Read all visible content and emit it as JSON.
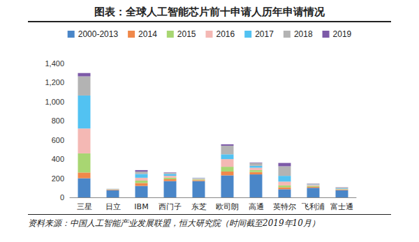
{
  "chart_data": {
    "type": "bar",
    "title": "图表：全球人工智能芯片前十申请人历年申请情况",
    "annotations": [
      "资料来源：中国人工智能产业发展联盟，恒大研究院（时间截至2019年10月）"
    ],
    "categories": [
      "三星",
      "日立",
      "IBM",
      "西门子",
      "东芝",
      "欧司朗",
      "高通",
      "英特尔",
      "飞利浦",
      "富士通"
    ],
    "series": [
      {
        "name": "2000-2013",
        "color": "#4a86c8",
        "values": [
          200,
          75,
          120,
          170,
          170,
          230,
          240,
          85,
          100,
          75
        ]
      },
      {
        "name": "2014",
        "color": "#f0884a",
        "values": [
          60,
          5,
          30,
          20,
          10,
          40,
          25,
          20,
          10,
          5
        ]
      },
      {
        "name": "2015",
        "color": "#a8d672",
        "values": [
          200,
          3,
          25,
          15,
          8,
          50,
          20,
          20,
          10,
          5
        ]
      },
      {
        "name": "2016",
        "color": "#f4b8b4",
        "values": [
          260,
          3,
          30,
          20,
          8,
          80,
          25,
          40,
          10,
          5
        ]
      },
      {
        "name": "2017",
        "color": "#52c2f2",
        "values": [
          345,
          2,
          40,
          20,
          5,
          50,
          20,
          60,
          5,
          5
        ]
      },
      {
        "name": "2018",
        "color": "#b3b3b3",
        "values": [
          200,
          2,
          25,
          10,
          3,
          90,
          30,
          100,
          8,
          8
        ]
      },
      {
        "name": "2019",
        "color": "#7d5aa8",
        "values": [
          35,
          0,
          15,
          5,
          1,
          15,
          5,
          35,
          2,
          2
        ]
      }
    ],
    "ylim": [
      0,
      1400
    ],
    "yticks": [
      0,
      200,
      400,
      600,
      800,
      {
        "value": 1000,
        "label": "1,000"
      },
      {
        "value": 1200,
        "label": "1,200"
      },
      {
        "value": 1400,
        "label": "1,400"
      }
    ],
    "stacked": true,
    "grid": false,
    "legend": "top"
  }
}
